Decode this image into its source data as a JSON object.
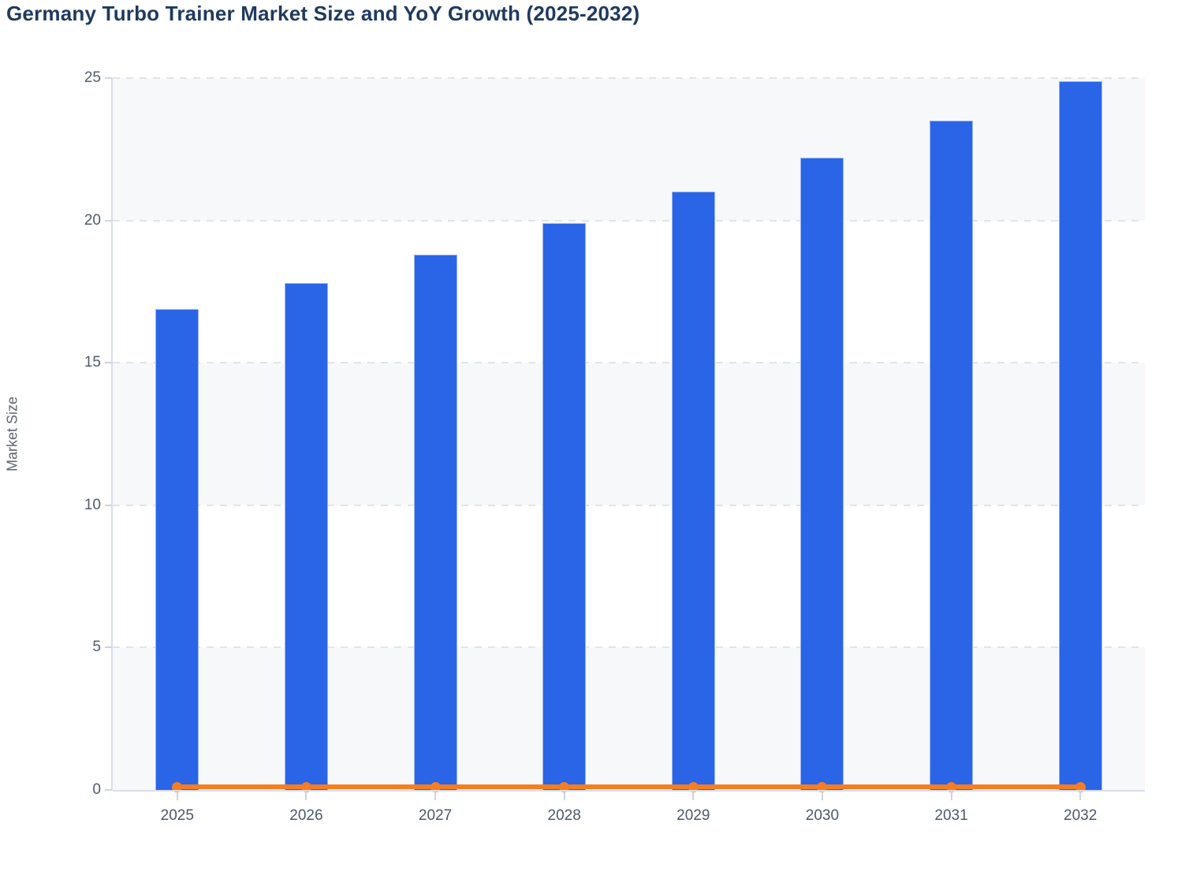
{
  "chart_data": {
    "type": "bar",
    "title": "Germany Turbo Trainer Market Size and YoY Growth (2025-2032)",
    "xlabel": "",
    "ylabel": "Market Size",
    "categories": [
      "2025",
      "2026",
      "2027",
      "2028",
      "2029",
      "2030",
      "2031",
      "2032"
    ],
    "series": [
      {
        "name": "Market Size",
        "type": "bar",
        "color": "#2a65e8",
        "values": [
          16.9,
          17.8,
          18.8,
          19.9,
          21.0,
          22.2,
          23.5,
          24.9
        ]
      },
      {
        "name": "YoY Growth",
        "type": "line",
        "color": "#f67e20",
        "values": [
          0.1,
          0.1,
          0.1,
          0.1,
          0.1,
          0.1,
          0.1,
          0.1
        ]
      }
    ],
    "ylim": [
      0,
      25
    ],
    "yticks": [
      0,
      5,
      10,
      15,
      20,
      25
    ],
    "grid": "horizontal-dashed",
    "band_fill": "#f7f8fa",
    "legend_position": "none"
  },
  "colors": {
    "title": "#1e3a5f",
    "bar": "#2a65e8",
    "line": "#f67e20",
    "axis": "#d8ddea",
    "tick_label": "#505c6f"
  }
}
